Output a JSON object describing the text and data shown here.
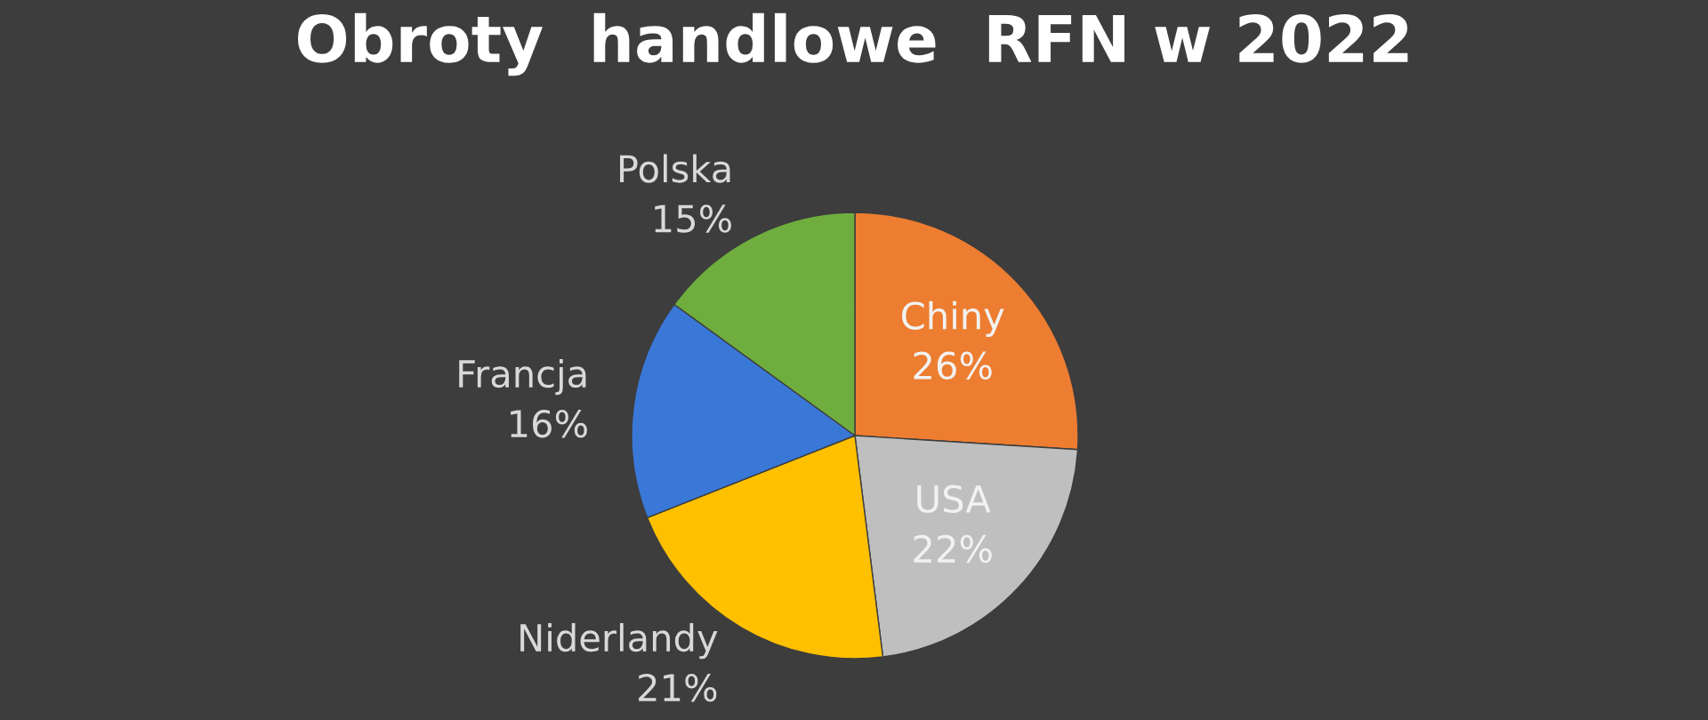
{
  "chart_data": {
    "type": "pie",
    "title": "Obroty  handlowe  RFN w 2022",
    "categories": [
      "Chiny",
      "USA",
      "Niderlandy",
      "Francja",
      "Polska"
    ],
    "values": [
      26,
      22,
      21,
      16,
      15
    ],
    "value_labels": [
      "26%",
      "22%",
      "21%",
      "16%",
      "15%"
    ],
    "colors": [
      "#ed7d31",
      "#bfbfbf",
      "#ffc000",
      "#3a78d8",
      "#6fae3e"
    ],
    "legend": false
  }
}
